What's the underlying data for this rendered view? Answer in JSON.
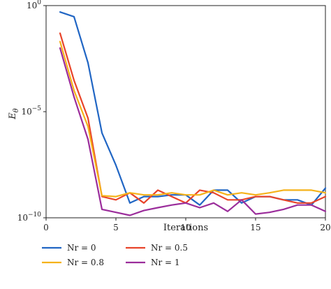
{
  "chart_data": {
    "type": "line",
    "xlabel": "Iterations",
    "ylabel": "E",
    "ylabel_subscript": "θ",
    "yscale": "log",
    "xlim": [
      0,
      20
    ],
    "ylim": [
      1e-10,
      1
    ],
    "grid": false,
    "legend_placement": "bottom",
    "x_ticks": [
      0,
      5,
      10,
      15,
      20
    ],
    "x_tick_labels": [
      "0",
      "5",
      "10",
      "15",
      "20"
    ],
    "y_ticks": [
      1e-10,
      1e-05,
      1
    ],
    "y_tick_bases": [
      "10",
      "10",
      "10"
    ],
    "y_tick_exponents": [
      "−10",
      "−5",
      "0"
    ],
    "series": [
      {
        "name": "Nr = 0",
        "color": "#2166c4",
        "x": [
          1,
          2,
          3,
          4,
          5,
          6,
          7,
          8,
          9,
          10,
          11,
          12,
          13,
          14,
          15,
          16,
          17,
          18,
          19,
          20
        ],
        "y": [
          0.5,
          0.3,
          0.002,
          1e-06,
          3e-08,
          5e-10,
          1e-09,
          1e-09,
          1.2e-09,
          1.2e-09,
          4e-10,
          2e-09,
          2e-09,
          5e-10,
          1e-09,
          1e-09,
          7e-10,
          7e-10,
          4e-10,
          2.5e-09
        ]
      },
      {
        "name": "Nr = 0.5",
        "color": "#e8442a",
        "x": [
          1,
          2,
          3,
          4,
          5,
          6,
          7,
          8,
          9,
          10,
          11,
          12,
          13,
          14,
          15,
          16,
          17,
          18,
          19,
          20
        ],
        "y": [
          0.05,
          0.0003,
          5e-06,
          1e-09,
          7e-10,
          1.5e-09,
          5e-10,
          2e-09,
          1e-09,
          5e-10,
          2e-09,
          1.5e-09,
          7e-10,
          7e-10,
          1e-09,
          1e-09,
          7e-10,
          5e-10,
          5e-10,
          1e-09
        ]
      },
      {
        "name": "Nr = 0.8",
        "color": "#f5b21a",
        "x": [
          1,
          2,
          3,
          4,
          5,
          6,
          7,
          8,
          9,
          10,
          11,
          12,
          13,
          14,
          15,
          16,
          17,
          18,
          19,
          20
        ],
        "y": [
          0.02,
          0.0001,
          2e-06,
          1.1e-09,
          1e-09,
          1.5e-09,
          1.2e-09,
          1.2e-09,
          1.5e-09,
          1.2e-09,
          1.2e-09,
          2e-09,
          1.2e-09,
          1.5e-09,
          1.2e-09,
          1.5e-09,
          2e-09,
          2e-09,
          2e-09,
          1.5e-09
        ]
      },
      {
        "name": "Nr = 1",
        "color": "#9b2d9b",
        "x": [
          1,
          2,
          3,
          4,
          5,
          6,
          7,
          8,
          9,
          10,
          11,
          12,
          13,
          14,
          15,
          16,
          17,
          18,
          19,
          20
        ],
        "y": [
          0.01,
          5e-05,
          5e-07,
          2.5e-10,
          1.8e-10,
          1.3e-10,
          2.2e-10,
          3e-10,
          4e-10,
          5e-10,
          3e-10,
          5e-10,
          2e-10,
          7e-10,
          1.5e-10,
          1.8e-10,
          2.5e-10,
          4e-10,
          4e-10,
          2e-10
        ]
      }
    ]
  }
}
